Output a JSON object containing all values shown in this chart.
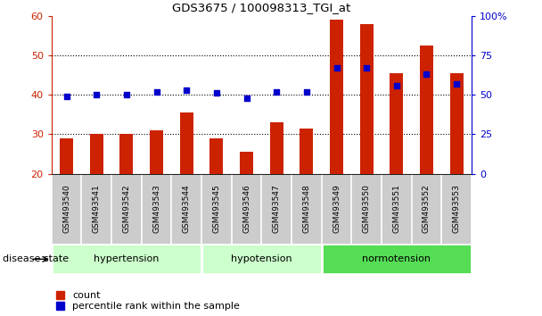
{
  "title": "GDS3675 / 100098313_TGI_at",
  "samples": [
    "GSM493540",
    "GSM493541",
    "GSM493542",
    "GSM493543",
    "GSM493544",
    "GSM493545",
    "GSM493546",
    "GSM493547",
    "GSM493548",
    "GSM493549",
    "GSM493550",
    "GSM493551",
    "GSM493552",
    "GSM493553"
  ],
  "counts": [
    29,
    30,
    30,
    31,
    35.5,
    29,
    25.5,
    33,
    31.5,
    59,
    58,
    45.5,
    52.5,
    45.5
  ],
  "percentiles_pct": [
    49,
    50,
    50,
    52,
    53,
    51,
    48,
    52,
    52,
    67,
    67,
    56,
    63,
    57
  ],
  "groups": [
    {
      "label": "hypertension",
      "start": 0,
      "end": 5,
      "color": "#ccffcc"
    },
    {
      "label": "hypotension",
      "start": 5,
      "end": 9,
      "color": "#ccffcc"
    },
    {
      "label": "normotension",
      "start": 9,
      "end": 14,
      "color": "#55dd55"
    }
  ],
  "bar_color": "#cc2200",
  "dot_color": "#0000cc",
  "bar_bottom": 20,
  "ylim_left": [
    20,
    60
  ],
  "ylim_right": [
    0,
    100
  ],
  "yticks_left": [
    20,
    30,
    40,
    50,
    60
  ],
  "yticks_right": [
    0,
    25,
    50,
    75,
    100
  ],
  "ytick_labels_right": [
    "0",
    "25",
    "50",
    "75",
    "100%"
  ],
  "legend_items": [
    "count",
    "percentile rank within the sample"
  ],
  "disease_state_label": "disease state",
  "tick_area_color": "#cccccc",
  "group_sep_color": "#ffffff"
}
